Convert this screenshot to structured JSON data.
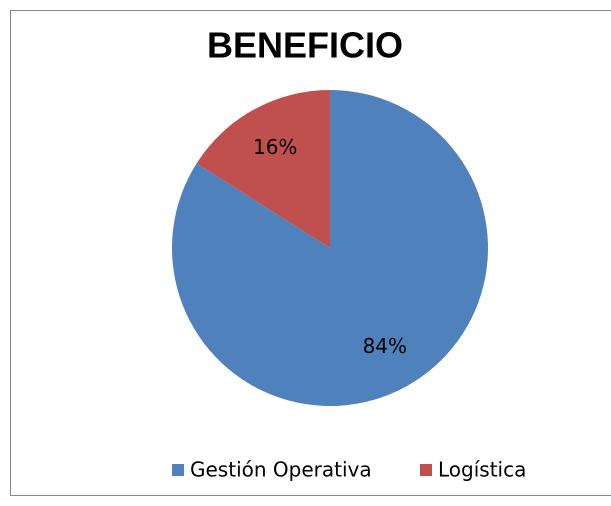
{
  "chart_data": {
    "type": "pie",
    "title": "BENEFICIO",
    "categories": [
      "Gestión Operativa",
      "Logística"
    ],
    "values": [
      84,
      16
    ],
    "value_labels": [
      "84%",
      "16%"
    ],
    "colors": [
      "#4f81bd",
      "#c0504d"
    ],
    "legend": "bottom"
  }
}
